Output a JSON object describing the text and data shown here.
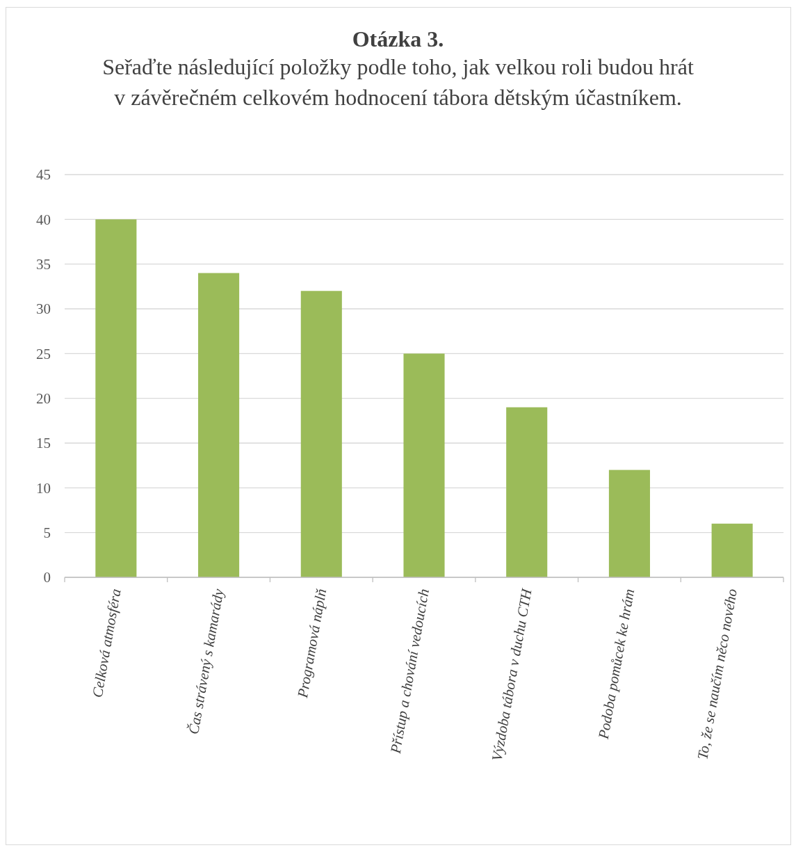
{
  "chart_data": {
    "type": "bar",
    "title": "Otázka 3.",
    "subtitle": "Seřaďte následující položky podle toho, jak velkou roli budou hrát v závěrečném celkovém hodnocení tábora dětským účastníkem.",
    "categories": [
      "Celková atmosféra",
      "Čas strávený s kamarády",
      "Programová náplň",
      "Přístup a chování vedoucích",
      "Výzdoba tábora v duchu CTH",
      "Podoba pomůcek ke hrám",
      "To, že se naučím něco nového"
    ],
    "values": [
      40,
      34,
      32,
      25,
      19,
      12,
      6
    ],
    "color": "#9bbb59",
    "ylim": [
      0,
      45
    ],
    "yticks": [
      0,
      5,
      10,
      15,
      20,
      25,
      30,
      35,
      40,
      45
    ],
    "grid": "y"
  }
}
